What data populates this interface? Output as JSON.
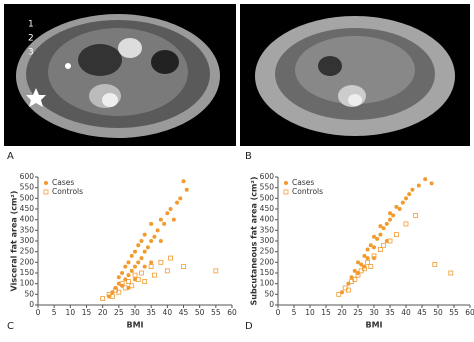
{
  "panel_labels": [
    "A",
    "B",
    "C",
    "D"
  ],
  "image_annotations": [
    "1",
    "2",
    "3"
  ],
  "chart_data": [
    {
      "type": "scatter",
      "x_label": "BMI",
      "y_label": "Visceral fat area (cm²)",
      "xlim": [
        0,
        60
      ],
      "xticks": [
        0,
        5,
        10,
        15,
        20,
        25,
        30,
        35,
        40,
        45,
        50,
        55,
        60
      ],
      "ylim": [
        0,
        600
      ],
      "yticks": [
        0,
        50,
        100,
        150,
        200,
        250,
        300,
        350,
        400,
        450,
        500,
        550,
        600
      ],
      "legend": "top-left",
      "series": [
        {
          "name": "Cases",
          "color": "#f39a2e",
          "marker": "circle",
          "x": [
            22,
            23,
            24,
            25,
            25,
            26,
            26,
            27,
            27,
            28,
            28,
            29,
            29,
            30,
            30,
            31,
            31,
            32,
            32,
            33,
            33,
            34,
            35,
            35,
            36,
            37,
            38,
            39,
            40,
            41,
            42,
            43,
            44,
            45,
            46,
            35,
            30,
            28,
            33,
            38
          ],
          "values": [
            40,
            60,
            80,
            100,
            130,
            90,
            150,
            120,
            180,
            140,
            200,
            160,
            230,
            180,
            250,
            200,
            280,
            220,
            300,
            250,
            330,
            270,
            300,
            380,
            320,
            350,
            400,
            380,
            430,
            450,
            400,
            480,
            500,
            580,
            540,
            200,
            120,
            80,
            180,
            300
          ]
        },
        {
          "name": "Controls",
          "color": "#f39a2e",
          "marker": "square",
          "x": [
            20,
            22,
            23,
            24,
            25,
            26,
            27,
            28,
            29,
            30,
            31,
            32,
            33,
            35,
            36,
            38,
            40,
            41,
            45,
            55
          ],
          "values": [
            30,
            50,
            40,
            70,
            60,
            100,
            80,
            110,
            90,
            140,
            120,
            150,
            110,
            180,
            140,
            200,
            160,
            220,
            180,
            160
          ]
        }
      ]
    },
    {
      "type": "scatter",
      "x_label": "BMI",
      "y_label": "Subcutaneous fat area (cm²)",
      "xlim": [
        0,
        60
      ],
      "xticks": [
        0,
        5,
        10,
        15,
        20,
        25,
        30,
        35,
        40,
        45,
        50,
        55,
        60
      ],
      "ylim": [
        0,
        600
      ],
      "yticks": [
        0,
        50,
        100,
        150,
        200,
        250,
        300,
        350,
        400,
        450,
        500,
        550,
        600
      ],
      "legend": "top-left",
      "series": [
        {
          "name": "Cases",
          "color": "#f39a2e",
          "marker": "circle",
          "x": [
            20,
            22,
            23,
            24,
            25,
            25,
            26,
            27,
            28,
            28,
            29,
            30,
            30,
            31,
            32,
            32,
            33,
            34,
            35,
            35,
            36,
            37,
            38,
            39,
            40,
            41,
            42,
            44,
            46,
            48,
            30,
            27,
            34
          ],
          "values": [
            60,
            100,
            130,
            160,
            150,
            200,
            190,
            230,
            220,
            260,
            280,
            270,
            320,
            310,
            330,
            370,
            360,
            380,
            400,
            430,
            420,
            460,
            450,
            480,
            500,
            520,
            540,
            560,
            590,
            570,
            220,
            180,
            300
          ]
        },
        {
          "name": "Controls",
          "color": "#f39a2e",
          "marker": "square",
          "x": [
            19,
            21,
            22,
            23,
            24,
            25,
            26,
            27,
            28,
            29,
            30,
            32,
            33,
            35,
            37,
            40,
            43,
            49,
            54
          ],
          "values": [
            50,
            80,
            70,
            110,
            120,
            140,
            160,
            170,
            200,
            180,
            230,
            260,
            280,
            300,
            330,
            380,
            420,
            190,
            150
          ]
        }
      ]
    }
  ]
}
